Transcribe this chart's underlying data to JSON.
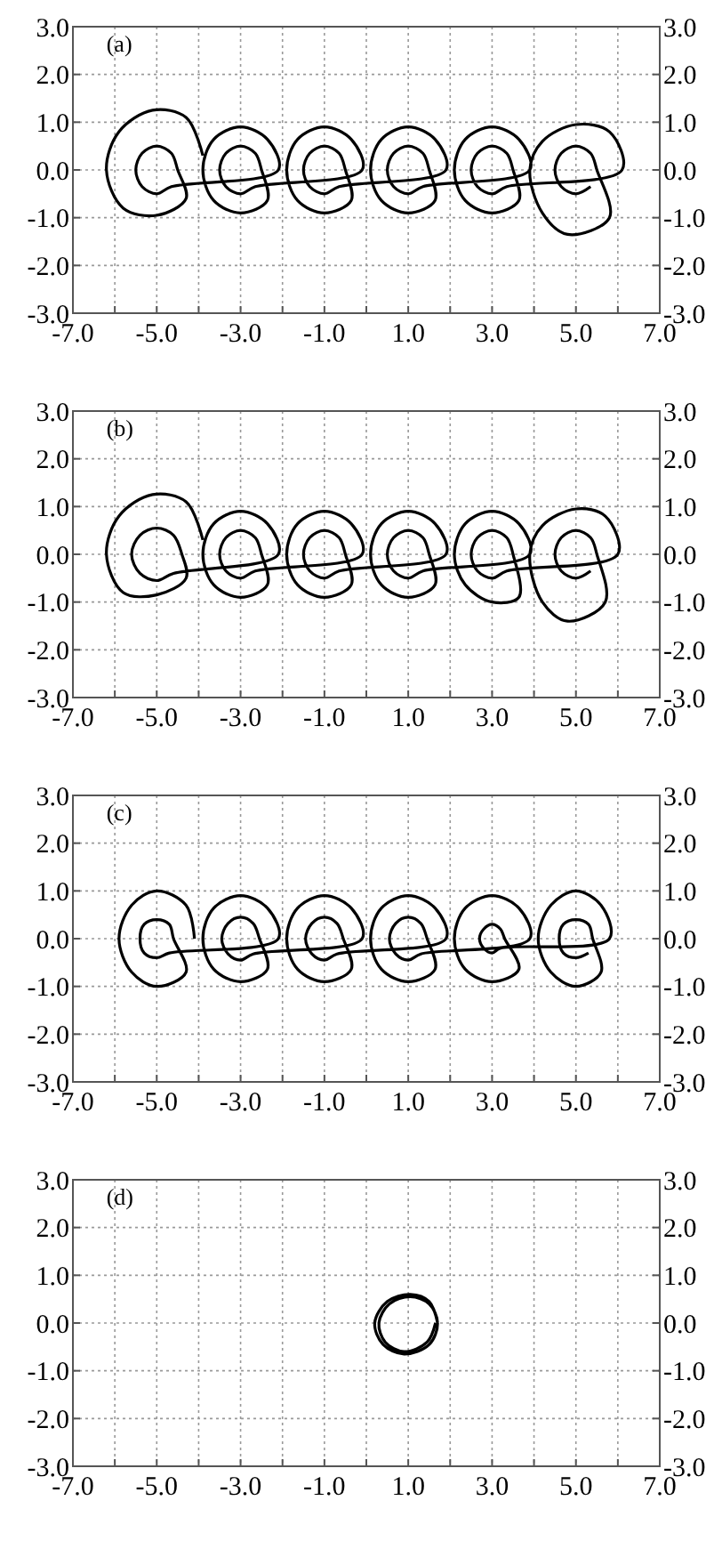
{
  "chart_data": [
    {
      "type": "line",
      "title": "(a)",
      "grid": true,
      "xlim": [
        -7,
        7
      ],
      "ylim": [
        -3,
        3
      ],
      "y2lim": [
        -3,
        3
      ],
      "xticks": [
        {
          "value": -7,
          "label": "-7.0"
        },
        {
          "value": -6,
          "label": null
        },
        {
          "value": -5,
          "label": "-5.0"
        },
        {
          "value": -4,
          "label": null
        },
        {
          "value": -3,
          "label": "-3.0"
        },
        {
          "value": -2,
          "label": null
        },
        {
          "value": -1,
          "label": "-1.0"
        },
        {
          "value": 0,
          "label": null
        },
        {
          "value": 1,
          "label": "1.0"
        },
        {
          "value": 2,
          "label": null
        },
        {
          "value": 3,
          "label": "3.0"
        },
        {
          "value": 4,
          "label": null
        },
        {
          "value": 5,
          "label": "5.0"
        },
        {
          "value": 6,
          "label": null
        },
        {
          "value": 7,
          "label": "7.0"
        }
      ],
      "yticks": [
        {
          "value": -3,
          "label": "-3.0"
        },
        {
          "value": -2,
          "label": "-2.0"
        },
        {
          "value": -1,
          "label": "-1.0"
        },
        {
          "value": 0,
          "label": "0.0"
        },
        {
          "value": 1,
          "label": "1.0"
        },
        {
          "value": 2,
          "label": "2.0"
        },
        {
          "value": 3,
          "label": "3.0"
        }
      ],
      "y2ticks": [
        {
          "value": -3,
          "label": "-3.0"
        },
        {
          "value": -2,
          "label": "-2.0"
        },
        {
          "value": -1,
          "label": "-1.0"
        },
        {
          "value": 0,
          "label": "0.0"
        },
        {
          "value": 1,
          "label": "1.0"
        },
        {
          "value": 2,
          "label": "2.0"
        },
        {
          "value": 3,
          "label": "3.0"
        }
      ],
      "series": [
        {
          "color": "#000000",
          "x": [
            -3.9,
            -4.3,
            -5.1,
            -5.9,
            -6.2,
            -5.8,
            -5,
            -4.3,
            -4.5,
            -4.65,
            -5,
            -5.35,
            -5.5,
            -5.35,
            -5,
            -4.65,
            -2.1,
            -2.36,
            -3,
            -3.64,
            -3.9,
            -3.64,
            -3,
            -2.36,
            -2.5,
            -2.65,
            -3,
            -3.35,
            -3.5,
            -3.35,
            -3,
            -2.65,
            -0.1,
            -0.36,
            -1,
            -1.64,
            -1.9,
            -1.64,
            -1,
            -0.36,
            -0.5,
            -0.65,
            -1,
            -1.35,
            -1.5,
            -1.35,
            -1,
            -0.65,
            1.9,
            1.64,
            1,
            0.36,
            0.1,
            0.36,
            1,
            1.64,
            1.5,
            1.35,
            1,
            0.65,
            0.5,
            0.65,
            1,
            1.35,
            3.9,
            3.64,
            3,
            2.36,
            2.1,
            2.36,
            3,
            3.64,
            3.5,
            3.35,
            3,
            2.65,
            2.5,
            2.65,
            3,
            3.35,
            6.1,
            5.8,
            5,
            4.2,
            3.9,
            4.2,
            4.8,
            5.8,
            5.5,
            5.35,
            5,
            4.65,
            4.5,
            4.65,
            5,
            5.35
          ],
          "values": [
            0.3,
            1.1,
            1.25,
            0.8,
            0,
            -0.8,
            -0.95,
            -0.6,
            0,
            0.35,
            0.5,
            0.35,
            0,
            -0.35,
            -0.5,
            -0.35,
            0,
            0.64,
            0.9,
            0.64,
            0,
            -0.64,
            -0.9,
            -0.64,
            0,
            0.35,
            0.5,
            0.35,
            0,
            -0.35,
            -0.5,
            -0.35,
            0,
            0.64,
            0.9,
            0.64,
            0,
            -0.64,
            -0.9,
            -0.64,
            0,
            0.35,
            0.5,
            0.35,
            0,
            -0.35,
            -0.5,
            -0.35,
            0,
            0.64,
            0.9,
            0.64,
            0,
            -0.64,
            -0.9,
            -0.64,
            0,
            0.35,
            0.5,
            0.35,
            0,
            -0.35,
            -0.5,
            -0.35,
            0,
            0.64,
            0.9,
            0.64,
            0,
            -0.64,
            -0.9,
            -0.64,
            0,
            0.35,
            0.5,
            0.35,
            0,
            -0.35,
            -0.5,
            -0.35,
            0,
            0.8,
            0.95,
            0.6,
            0,
            -0.9,
            -1.35,
            -1,
            0,
            0.35,
            0.5,
            0.35,
            0,
            -0.35,
            -0.5,
            -0.35
          ]
        }
      ]
    },
    {
      "type": "line",
      "title": "(b)",
      "grid": true,
      "xlim": [
        -7,
        7
      ],
      "ylim": [
        -3,
        3
      ],
      "y2lim": [
        -3,
        3
      ],
      "xticks": [
        {
          "value": -7,
          "label": "-7.0"
        },
        {
          "value": -6,
          "label": null
        },
        {
          "value": -5,
          "label": "-5.0"
        },
        {
          "value": -4,
          "label": null
        },
        {
          "value": -3,
          "label": "-3.0"
        },
        {
          "value": -2,
          "label": null
        },
        {
          "value": -1,
          "label": "-1.0"
        },
        {
          "value": 0,
          "label": null
        },
        {
          "value": 1,
          "label": "1.0"
        },
        {
          "value": 2,
          "label": null
        },
        {
          "value": 3,
          "label": "3.0"
        },
        {
          "value": 4,
          "label": null
        },
        {
          "value": 5,
          "label": "5.0"
        },
        {
          "value": 6,
          "label": null
        },
        {
          "value": 7,
          "label": "7.0"
        }
      ],
      "yticks": [
        {
          "value": -3,
          "label": "-3.0"
        },
        {
          "value": -2,
          "label": "-2.0"
        },
        {
          "value": -1,
          "label": "-1.0"
        },
        {
          "value": 0,
          "label": "0.0"
        },
        {
          "value": 1,
          "label": "1.0"
        },
        {
          "value": 2,
          "label": "2.0"
        },
        {
          "value": 3,
          "label": "3.0"
        }
      ],
      "y2ticks": [
        {
          "value": -3,
          "label": "-3.0"
        },
        {
          "value": -2,
          "label": "-2.0"
        },
        {
          "value": -1,
          "label": "-1.0"
        },
        {
          "value": 0,
          "label": "0.0"
        },
        {
          "value": 1,
          "label": "1.0"
        },
        {
          "value": 2,
          "label": "2.0"
        },
        {
          "value": 3,
          "label": "3.0"
        }
      ],
      "series": [
        {
          "color": "#000000",
          "x": [
            -3.9,
            -4.3,
            -5.1,
            -5.9,
            -6.2,
            -5.8,
            -5,
            -4.3,
            -4.4,
            -4.6,
            -5,
            -5.4,
            -5.6,
            -5.4,
            -5,
            -4.6,
            -2.1,
            -2.36,
            -3,
            -3.64,
            -3.9,
            -3.64,
            -3,
            -2.36,
            -2.5,
            -2.65,
            -3,
            -3.35,
            -3.5,
            -3.35,
            -3,
            -2.65,
            -0.1,
            -0.36,
            -1,
            -1.64,
            -1.9,
            -1.64,
            -1,
            -0.36,
            -0.5,
            -0.65,
            -1,
            -1.35,
            -1.5,
            -1.35,
            -1,
            -0.65,
            1.9,
            1.64,
            1,
            0.36,
            0.1,
            0.36,
            1,
            1.64,
            1.5,
            1.35,
            1,
            0.65,
            0.5,
            0.65,
            1,
            1.35,
            3.9,
            3.64,
            3,
            2.36,
            2.1,
            2.36,
            3,
            3.64,
            3.5,
            3.35,
            3,
            2.65,
            2.5,
            2.65,
            3,
            3.35,
            6,
            5.7,
            5,
            4.2,
            3.9,
            4.2,
            4.8,
            5.7,
            5.5,
            5.35,
            5,
            4.65,
            4.5,
            4.65,
            5,
            5.35
          ],
          "values": [
            0.3,
            1.1,
            1.25,
            0.8,
            0,
            -0.8,
            -0.85,
            -0.5,
            0,
            0.4,
            0.55,
            0.4,
            0,
            -0.4,
            -0.55,
            -0.4,
            0,
            0.64,
            0.9,
            0.64,
            0,
            -0.64,
            -0.9,
            -0.64,
            0,
            0.35,
            0.5,
            0.35,
            0,
            -0.35,
            -0.5,
            -0.35,
            0,
            0.64,
            0.9,
            0.64,
            0,
            -0.64,
            -0.9,
            -0.64,
            0,
            0.35,
            0.5,
            0.35,
            0,
            -0.35,
            -0.5,
            -0.35,
            0,
            0.64,
            0.9,
            0.64,
            0,
            -0.64,
            -0.9,
            -0.64,
            0,
            0.35,
            0.5,
            0.35,
            0,
            -0.35,
            -0.5,
            -0.35,
            0,
            0.64,
            0.9,
            0.64,
            0,
            -0.64,
            -1,
            -0.9,
            0,
            0.35,
            0.5,
            0.35,
            0,
            -0.35,
            -0.5,
            -0.35,
            0,
            0.8,
            0.95,
            0.6,
            0,
            -1,
            -1.4,
            -1,
            0,
            0.35,
            0.5,
            0.35,
            0,
            -0.35,
            -0.5,
            -0.35
          ]
        }
      ]
    },
    {
      "type": "line",
      "title": "(c)",
      "grid": true,
      "xlim": [
        -7,
        7
      ],
      "ylim": [
        -3,
        3
      ],
      "y2lim": [
        -3,
        3
      ],
      "xticks": [
        {
          "value": -7,
          "label": "-7.0"
        },
        {
          "value": -6,
          "label": null
        },
        {
          "value": -5,
          "label": "-5.0"
        },
        {
          "value": -4,
          "label": null
        },
        {
          "value": -3,
          "label": "-3.0"
        },
        {
          "value": -2,
          "label": null
        },
        {
          "value": -1,
          "label": "-1.0"
        },
        {
          "value": 0,
          "label": null
        },
        {
          "value": 1,
          "label": "1.0"
        },
        {
          "value": 2,
          "label": null
        },
        {
          "value": 3,
          "label": "3.0"
        },
        {
          "value": 4,
          "label": null
        },
        {
          "value": 5,
          "label": "5.0"
        },
        {
          "value": 6,
          "label": null
        },
        {
          "value": 7,
          "label": "7.0"
        }
      ],
      "yticks": [
        {
          "value": -3,
          "label": "-3.0"
        },
        {
          "value": -2,
          "label": "-2.0"
        },
        {
          "value": -1,
          "label": "-1.0"
        },
        {
          "value": 0,
          "label": "0.0"
        },
        {
          "value": 1,
          "label": "1.0"
        },
        {
          "value": 2,
          "label": "2.0"
        },
        {
          "value": 3,
          "label": "3.0"
        }
      ],
      "y2ticks": [
        {
          "value": -3,
          "label": "-3.0"
        },
        {
          "value": -2,
          "label": "-2.0"
        },
        {
          "value": -1,
          "label": "-1.0"
        },
        {
          "value": 0,
          "label": "0.0"
        },
        {
          "value": 1,
          "label": "1.0"
        },
        {
          "value": 2,
          "label": "2.0"
        },
        {
          "value": 3,
          "label": "3.0"
        }
      ],
      "series": [
        {
          "color": "#000000",
          "x": [
            -4.1,
            -4.3,
            -5,
            -5.6,
            -5.9,
            -5.6,
            -5,
            -4.3,
            -4.6,
            -4.7,
            -5,
            -5.3,
            -5.4,
            -5.3,
            -5,
            -4.7,
            -2.1,
            -2.36,
            -3,
            -3.64,
            -3.9,
            -3.64,
            -3,
            -2.36,
            -2.55,
            -2.7,
            -3,
            -3.3,
            -3.45,
            -3.3,
            -3,
            -2.7,
            -0.1,
            -0.36,
            -1,
            -1.64,
            -1.9,
            -1.64,
            -1,
            -0.36,
            -0.55,
            -0.7,
            -1,
            -1.3,
            -1.45,
            -1.3,
            -1,
            -0.7,
            1.9,
            1.64,
            1,
            0.36,
            0.1,
            0.36,
            1,
            1.64,
            1.45,
            1.3,
            1,
            0.7,
            0.55,
            0.7,
            1,
            1.3,
            3.9,
            3.64,
            3,
            2.36,
            2.1,
            2.36,
            3,
            3.64,
            3.3,
            3.2,
            3,
            2.8,
            2.7,
            2.8,
            3,
            3.2,
            5.8,
            5.6,
            5,
            4.4,
            4.1,
            4.4,
            5,
            5.6,
            5.4,
            5.3,
            5,
            4.7,
            4.6,
            4.7,
            5,
            5.3
          ],
          "values": [
            0,
            0.7,
            1,
            0.7,
            0,
            -0.7,
            -1,
            -0.7,
            0,
            0.3,
            0.4,
            0.3,
            0,
            -0.3,
            -0.4,
            -0.3,
            0,
            0.64,
            0.9,
            0.64,
            0,
            -0.64,
            -0.9,
            -0.64,
            0,
            0.32,
            0.45,
            0.32,
            0,
            -0.32,
            -0.45,
            -0.32,
            0,
            0.64,
            0.9,
            0.64,
            0,
            -0.64,
            -0.9,
            -0.64,
            0,
            0.32,
            0.45,
            0.32,
            0,
            -0.32,
            -0.45,
            -0.32,
            0,
            0.64,
            0.9,
            0.64,
            0,
            -0.64,
            -0.9,
            -0.64,
            0,
            0.32,
            0.45,
            0.32,
            0,
            -0.32,
            -0.45,
            -0.32,
            0,
            0.64,
            0.9,
            0.64,
            0,
            -0.64,
            -0.9,
            -0.64,
            0,
            0.2,
            0.3,
            0.2,
            0,
            -0.2,
            -0.3,
            -0.2,
            0,
            0.7,
            1,
            0.7,
            0,
            -0.7,
            -1,
            -0.7,
            0,
            0.3,
            0.4,
            0.3,
            0,
            -0.3,
            -0.4,
            -0.3
          ]
        }
      ]
    },
    {
      "type": "line",
      "title": "(d)",
      "grid": true,
      "xlim": [
        -7,
        7
      ],
      "ylim": [
        -3,
        3
      ],
      "y2lim": [
        -3,
        3
      ],
      "xticks": [
        {
          "value": -7,
          "label": "-7.0"
        },
        {
          "value": -6,
          "label": null
        },
        {
          "value": -5,
          "label": "-5.0"
        },
        {
          "value": -4,
          "label": null
        },
        {
          "value": -3,
          "label": "-3.0"
        },
        {
          "value": -2,
          "label": null
        },
        {
          "value": -1,
          "label": "-1.0"
        },
        {
          "value": 0,
          "label": null
        },
        {
          "value": 1,
          "label": "1.0"
        },
        {
          "value": 2,
          "label": null
        },
        {
          "value": 3,
          "label": "3.0"
        },
        {
          "value": 4,
          "label": null
        },
        {
          "value": 5,
          "label": "5.0"
        },
        {
          "value": 6,
          "label": null
        },
        {
          "value": 7,
          "label": "7.0"
        }
      ],
      "yticks": [
        {
          "value": -3,
          "label": "-3.0"
        },
        {
          "value": -2,
          "label": "-2.0"
        },
        {
          "value": -1,
          "label": "-1.0"
        },
        {
          "value": 0,
          "label": "0.0"
        },
        {
          "value": 1,
          "label": "1.0"
        },
        {
          "value": 2,
          "label": "2.0"
        },
        {
          "value": 3,
          "label": "3.0"
        }
      ],
      "y2ticks": [
        {
          "value": -3,
          "label": "-3.0"
        },
        {
          "value": -2,
          "label": "-2.0"
        },
        {
          "value": -1,
          "label": "-1.0"
        },
        {
          "value": 0,
          "label": "0.0"
        },
        {
          "value": 1,
          "label": "1.0"
        },
        {
          "value": 2,
          "label": "2.0"
        },
        {
          "value": 3,
          "label": "3.0"
        }
      ],
      "series": [
        {
          "color": "#000000",
          "x": [
            1.7,
            1.5,
            1.05,
            0.5,
            0.2,
            0.4,
            0.9,
            1.5,
            1.7,
            1.5,
            1.05,
            0.55,
            0.3,
            0.45,
            0.9,
            1.45,
            1.65
          ],
          "values": [
            0,
            0.45,
            0.6,
            0.45,
            0,
            -0.45,
            -0.65,
            -0.45,
            0,
            0.4,
            0.55,
            0.4,
            0,
            -0.4,
            -0.6,
            -0.4,
            0
          ]
        }
      ]
    }
  ]
}
